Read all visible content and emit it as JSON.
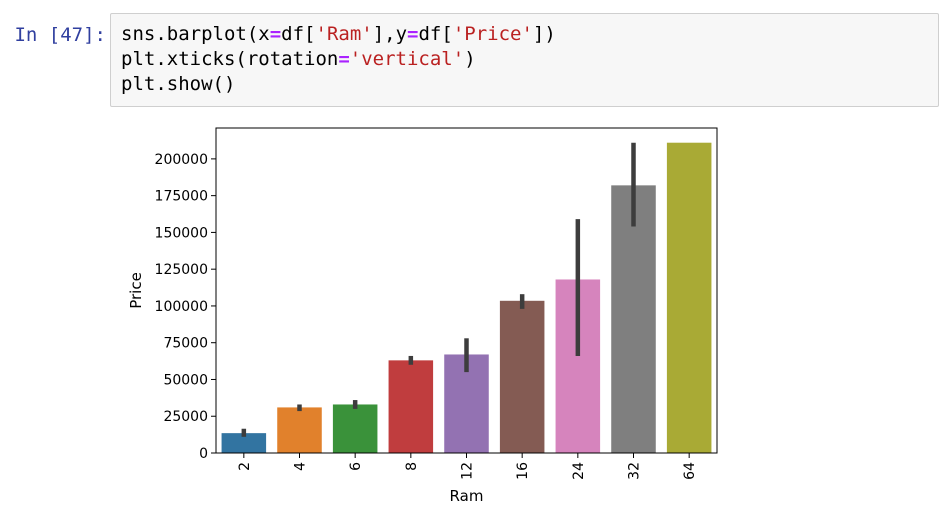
{
  "cell": {
    "prompt": "In [47]:",
    "lines": [
      {
        "p1": "sns.barplot(x",
        "eq1": "=",
        "p2": "df[",
        "s1": "'Ram'",
        "p3": "],y",
        "eq2": "=",
        "p4": "df[",
        "s2": "'Price'",
        "p5": "])"
      },
      {
        "p1": "plt.xticks(rotation",
        "eq1": "=",
        "s1": "'vertical'",
        "p2": ")"
      },
      {
        "p1": "plt.show()"
      }
    ]
  },
  "chart_data": {
    "type": "bar",
    "categories": [
      "2",
      "4",
      "6",
      "8",
      "12",
      "16",
      "24",
      "32",
      "64"
    ],
    "values": [
      13500,
      31000,
      33000,
      63000,
      67000,
      103500,
      118000,
      182000,
      211000
    ],
    "error_low": [
      11000,
      28500,
      30000,
      60000,
      55000,
      98000,
      66000,
      154000,
      211000
    ],
    "error_high": [
      16500,
      33000,
      36000,
      66000,
      78000,
      108000,
      159000,
      211000,
      211000
    ],
    "colors": [
      "#3274a1",
      "#e1812c",
      "#3a923a",
      "#c03d3e",
      "#9372b2",
      "#845b53",
      "#d684bd",
      "#7f7f7f",
      "#a9aa35"
    ],
    "xlabel": "Ram",
    "ylabel": "Price",
    "yticks": [
      "0",
      "25000",
      "50000",
      "75000",
      "100000",
      "125000",
      "150000",
      "175000",
      "200000"
    ],
    "ylim": [
      0,
      221000
    ],
    "grid": false
  }
}
